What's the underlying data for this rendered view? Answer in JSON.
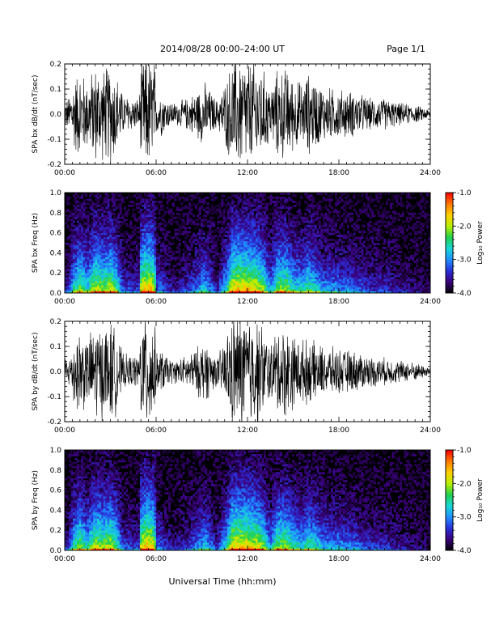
{
  "header": {
    "title": "2014/08/28   00:00–24:00 UT",
    "page_label": "Page 1/1"
  },
  "footer": {
    "xlabel": "Universal Time (hh:mm)"
  },
  "colorbar": {
    "ticks": [
      "-1.0",
      "-2.0",
      "-3.0",
      "-4.0"
    ],
    "tick_values": [
      -1,
      -2,
      -3,
      -4
    ],
    "range": [
      -4,
      -1
    ],
    "label": "Log₁₀ Power",
    "colors": [
      "#000000",
      "#3a007a",
      "#2a2fd8",
      "#1f8fff",
      "#18d8d8",
      "#20d050",
      "#b8f000",
      "#ffd000",
      "#ff7a00",
      "#ff0000"
    ]
  },
  "chart_data": [
    {
      "type": "line",
      "ylabel": "SPA bx dB/dt (nT/sec)",
      "xlim": [
        0,
        24
      ],
      "ylim": [
        -0.2,
        0.2
      ],
      "xticks": [
        "00:00",
        "06:00",
        "12:00",
        "18:00",
        "24:00"
      ],
      "xtick_values": [
        0,
        6,
        12,
        18,
        24
      ],
      "yticks": [
        "0.2",
        "0.1",
        "0.0",
        "-0.1",
        "-0.2"
      ],
      "ytick_values": [
        0.2,
        0.1,
        0.0,
        -0.1,
        -0.2
      ],
      "envelope": {
        "hours": [
          0,
          0.3,
          0.6,
          1.0,
          1.5,
          2.0,
          2.5,
          3.0,
          3.4,
          3.8,
          4.2,
          4.6,
          4.9,
          5.0,
          5.2,
          5.6,
          5.9,
          6.0,
          6.3,
          6.8,
          7.3,
          8.0,
          8.6,
          9.2,
          9.6,
          10.0,
          10.6,
          11.0,
          11.5,
          12.0,
          12.6,
          13.0,
          13.5,
          14.0,
          14.6,
          15.0,
          15.6,
          16.0,
          17.0,
          18.0,
          19.0,
          20.0,
          21.0,
          22.0,
          23.0,
          24.0
        ],
        "amplitude": [
          0.06,
          0.08,
          0.16,
          0.2,
          0.15,
          0.22,
          0.2,
          0.22,
          0.18,
          0.09,
          0.08,
          0.07,
          0.07,
          0.22,
          0.25,
          0.25,
          0.24,
          0.09,
          0.1,
          0.06,
          0.05,
          0.07,
          0.1,
          0.14,
          0.1,
          0.06,
          0.15,
          0.24,
          0.25,
          0.24,
          0.23,
          0.2,
          0.12,
          0.2,
          0.2,
          0.16,
          0.14,
          0.18,
          0.12,
          0.11,
          0.1,
          0.07,
          0.07,
          0.05,
          0.04,
          0.02
        ]
      }
    },
    {
      "type": "heatmap",
      "ylabel": "SPA bx Freq (Hz)",
      "xlim": [
        0,
        24
      ],
      "ylim": [
        0,
        1.0
      ],
      "zlim": [
        -4,
        -1
      ],
      "xticks": [
        "00:00",
        "06:00",
        "12:00",
        "18:00",
        "24:00"
      ],
      "xtick_values": [
        0,
        6,
        12,
        18,
        24
      ],
      "yticks": [
        "1.0",
        "0.8",
        "0.6",
        "0.4",
        "0.2",
        "0.0"
      ],
      "ytick_values": [
        1.0,
        0.8,
        0.6,
        0.4,
        0.2,
        0.0
      ]
    },
    {
      "type": "line",
      "ylabel": "SPA by dB/dt (nT/sec)",
      "xlim": [
        0,
        24
      ],
      "ylim": [
        -0.2,
        0.2
      ],
      "xticks": [
        "00:00",
        "06:00",
        "12:00",
        "18:00",
        "24:00"
      ],
      "xtick_values": [
        0,
        6,
        12,
        18,
        24
      ],
      "yticks": [
        "0.2",
        "0.1",
        "0.0",
        "-0.1",
        "-0.2"
      ],
      "ytick_values": [
        0.2,
        0.1,
        0.0,
        -0.1,
        -0.2
      ],
      "envelope": {
        "hours": [
          0,
          0.3,
          0.6,
          1.0,
          1.5,
          2.0,
          2.5,
          3.0,
          3.4,
          3.8,
          4.2,
          4.6,
          4.9,
          5.0,
          5.2,
          5.6,
          5.9,
          6.0,
          6.3,
          6.8,
          7.3,
          8.0,
          8.6,
          9.2,
          9.6,
          10.0,
          10.6,
          11.0,
          11.5,
          12.0,
          12.6,
          13.0,
          13.5,
          14.0,
          14.6,
          15.0,
          15.6,
          16.0,
          17.0,
          18.0,
          19.0,
          20.0,
          21.0,
          22.0,
          23.0,
          24.0
        ],
        "amplitude": [
          0.06,
          0.07,
          0.15,
          0.2,
          0.14,
          0.22,
          0.2,
          0.22,
          0.18,
          0.08,
          0.07,
          0.07,
          0.07,
          0.25,
          0.26,
          0.26,
          0.24,
          0.08,
          0.1,
          0.06,
          0.05,
          0.07,
          0.1,
          0.14,
          0.1,
          0.06,
          0.16,
          0.25,
          0.26,
          0.25,
          0.24,
          0.2,
          0.12,
          0.2,
          0.2,
          0.16,
          0.14,
          0.14,
          0.11,
          0.1,
          0.09,
          0.07,
          0.06,
          0.05,
          0.04,
          0.02
        ]
      }
    },
    {
      "type": "heatmap",
      "ylabel": "SPA by Freq (Hz)",
      "xlim": [
        0,
        24
      ],
      "ylim": [
        0,
        1.0
      ],
      "zlim": [
        -4,
        -1
      ],
      "xticks": [
        "00:00",
        "06:00",
        "12:00",
        "18:00",
        "24:00"
      ],
      "xtick_values": [
        0,
        6,
        12,
        18,
        24
      ],
      "yticks": [
        "1.0",
        "0.8",
        "0.6",
        "0.4",
        "0.2",
        "0.0"
      ],
      "ytick_values": [
        1.0,
        0.8,
        0.6,
        0.4,
        0.2,
        0.0
      ]
    }
  ]
}
